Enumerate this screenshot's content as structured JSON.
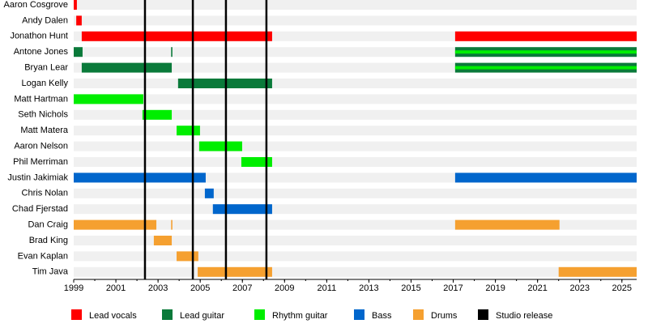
{
  "chart_data": {
    "type": "timeline",
    "categories": [
      "Aaron Cosgrove",
      "Andy Dalen",
      "Jonathon Hunt",
      "Antone Jones",
      "Bryan Lear",
      "Logan Kelly",
      "Matt Hartman",
      "Seth Nichols",
      "Matt Matera",
      "Aaron Nelson",
      "Phil Merriman",
      "Justin Jakimiak",
      "Chris Nolan",
      "Chad Fjerstad",
      "Dan Craig",
      "Brad King",
      "Evan Kaplan",
      "Tim Java"
    ],
    "roles": [
      {
        "name": "Lead vocals",
        "color": "#ff0000"
      },
      {
        "name": "Lead guitar",
        "color": "#0a7a3a"
      },
      {
        "name": "Rhythm guitar",
        "color": "#00ee00"
      },
      {
        "name": "Bass",
        "color": "#0066cc"
      },
      {
        "name": "Drums",
        "color": "#f5a030"
      }
    ],
    "bars": [
      {
        "member": "Aaron Cosgrove",
        "role": "Lead vocals",
        "start": 1999.0,
        "end": 1999.15
      },
      {
        "member": "Andy Dalen",
        "role": "Lead vocals",
        "start": 1999.12,
        "end": 1999.38
      },
      {
        "member": "Jonathon Hunt",
        "role": "Lead vocals",
        "start": 1999.38,
        "end": 2008.41
      },
      {
        "member": "Jonathon Hunt",
        "role": "Lead vocals",
        "start": 2017.09,
        "end": 2025.7
      },
      {
        "member": "Antone Jones",
        "role": "Lead guitar",
        "start": 1999.0,
        "end": 1999.42
      },
      {
        "member": "Antone Jones",
        "role": "Lead guitar",
        "start": 2003.62,
        "end": 2003.68
      },
      {
        "member": "Antone Jones",
        "role": "Lead guitar",
        "stripe": "Rhythm guitar",
        "start": 2017.09,
        "end": 2025.7
      },
      {
        "member": "Bryan Lear",
        "role": "Lead guitar",
        "start": 1999.38,
        "end": 2003.65
      },
      {
        "member": "Bryan Lear",
        "role": "Lead guitar",
        "stripe": "Rhythm guitar",
        "start": 2017.09,
        "end": 2025.7
      },
      {
        "member": "Logan Kelly",
        "role": "Lead guitar",
        "start": 2003.95,
        "end": 2008.41
      },
      {
        "member": "Matt Hartman",
        "role": "Rhythm guitar",
        "start": 1999.0,
        "end": 2002.3
      },
      {
        "member": "Seth Nichols",
        "role": "Rhythm guitar",
        "start": 2002.26,
        "end": 2003.65
      },
      {
        "member": "Matt Matera",
        "role": "Rhythm guitar",
        "start": 2003.88,
        "end": 2004.99
      },
      {
        "member": "Aaron Nelson",
        "role": "Rhythm guitar",
        "start": 2004.95,
        "end": 2006.99
      },
      {
        "member": "Phil Merriman",
        "role": "Rhythm guitar",
        "start": 2006.95,
        "end": 2008.41
      },
      {
        "member": "Justin Jakimiak",
        "role": "Bass",
        "start": 1999.0,
        "end": 2005.26
      },
      {
        "member": "Justin Jakimiak",
        "role": "Bass",
        "start": 2017.09,
        "end": 2025.7
      },
      {
        "member": "Chris Nolan",
        "role": "Bass",
        "start": 2005.22,
        "end": 2005.64
      },
      {
        "member": "Chad Fjerstad",
        "role": "Bass",
        "start": 2005.6,
        "end": 2008.41
      },
      {
        "member": "Dan Craig",
        "role": "Drums",
        "start": 1999.0,
        "end": 2002.92
      },
      {
        "member": "Dan Craig",
        "role": "Drums",
        "start": 2003.62,
        "end": 2003.68
      },
      {
        "member": "Dan Craig",
        "role": "Drums",
        "start": 2017.09,
        "end": 2022.04
      },
      {
        "member": "Brad King",
        "role": "Drums",
        "start": 2002.8,
        "end": 2003.65
      },
      {
        "member": "Evan Kaplan",
        "role": "Drums",
        "start": 2003.88,
        "end": 2004.91
      },
      {
        "member": "Tim Java",
        "role": "Drums",
        "start": 2004.88,
        "end": 2008.41
      },
      {
        "member": "Tim Java",
        "role": "Drums",
        "start": 2022.0,
        "end": 2025.7
      }
    ],
    "releases": [
      2002.38,
      2004.65,
      2006.22,
      2008.14
    ],
    "release_label": "Studio release",
    "release_color": "#000000",
    "xlim": [
      1999,
      2025.7
    ],
    "xticks": [
      1999,
      2001,
      2003,
      2005,
      2007,
      2009,
      2011,
      2013,
      2015,
      2017,
      2019,
      2021,
      2023,
      2025
    ]
  }
}
